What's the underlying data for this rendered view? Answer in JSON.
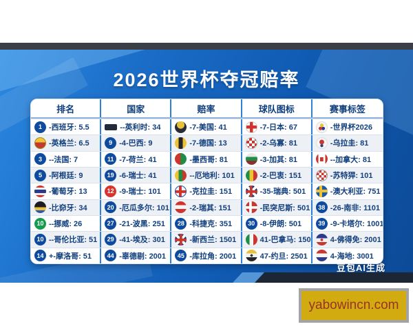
{
  "title": "2026世界杯夺冠赔率",
  "watermark": "豆包AI生成",
  "promo": {
    "text": "yabowincn.com"
  },
  "colors": {
    "background_blue": "#1a6cc6",
    "dark_bar": "#3a3e46",
    "table_text": "#123f7d",
    "column_divider_blue": "#2e7fd8",
    "badge_blue": "#0e4a9e",
    "badge_green": "#169a4f",
    "badge_red": "#d8332e",
    "promo_bg": "#d2ab10",
    "promo_text": "#993325"
  },
  "table": {
    "headers": [
      "排名",
      "国家",
      "赔率",
      "球队图标",
      "赛事标签"
    ],
    "rows": [
      [
        {
          "icon": "badge-blue",
          "num": "1",
          "text": "-西班牙: 5.5"
        },
        {
          "icon": "bar-dark",
          "text": "--英利时: 34"
        },
        {
          "icon": "crest-crown",
          "text": "-7-美国: 41"
        },
        {
          "icon": "flag-white-red-cross",
          "text": "-7-日本: 67"
        },
        {
          "icon": "logo-worldcup",
          "text": "-世界杯2026"
        }
      ],
      [
        {
          "icon": "crest-england",
          "text": "-英格兰: 6.5"
        },
        {
          "icon": "badge-blue",
          "num": "9",
          "text": "-4-巴西: 9"
        },
        {
          "icon": "flag-gold-black",
          "text": "-7-德国: 13"
        },
        {
          "icon": "flag-croatia-check",
          "text": "-2-乌寡: 81"
        },
        {
          "icon": "logo-worldcup-red",
          "text": "-乌拉圭: 81"
        }
      ],
      [
        {
          "icon": "badge-blue",
          "num": "3",
          "text": "--法国: 7"
        },
        {
          "icon": "badge-blue",
          "num": "11",
          "text": "-7-荷兰: 41"
        },
        {
          "icon": "flag-red-green",
          "text": "-墨西哥: 81"
        },
        {
          "icon": "flag-bulgaria",
          "text": "-3-加其: 81"
        },
        {
          "icon": "flag-canada",
          "text": "--加拿大: 81"
        }
      ],
      [
        {
          "icon": "badge-blue",
          "num": "5",
          "text": "-阿根廷: 9"
        },
        {
          "icon": "badge-blue",
          "num": "19",
          "text": "-6-瑞士: 41"
        },
        {
          "icon": "flag-yellow-green-red",
          "text": "--厄地利: 101"
        },
        {
          "icon": "flag-mali",
          "text": "-2-巴衷: 151"
        },
        {
          "icon": "crest-croatia",
          "text": "-苏特猂: 101"
        }
      ],
      [
        {
          "icon": "flag-thailand",
          "text": "-葡萄牙: 13"
        },
        {
          "icon": "badge-red",
          "num": "12",
          "text": "-9-瑞士: 101"
        },
        {
          "icon": "flag-cross-red",
          "text": "-克拉圭: 151"
        },
        {
          "icon": "flag-unionjack",
          "text": "-35-瑞典: 501"
        },
        {
          "icon": "flag-sweden",
          "text": "-澳大利亚: 751"
        }
      ],
      [
        {
          "icon": "flag-black-gold-blue",
          "text": "-比奅牙: 34"
        },
        {
          "icon": "badge-blue",
          "num": "20",
          "text": "-厄瓜多尔: 101"
        },
        {
          "icon": "flag-austria",
          "text": "-2-瑞其: 151"
        },
        {
          "icon": "flag-denmark",
          "text": "-民突尼斯: 501"
        },
        {
          "icon": "badge-blue",
          "num": "38",
          "text": "-26-南非: 1101"
        }
      ],
      [
        {
          "icon": "badge-green",
          "num": "10",
          "text": "--挪威: 26"
        },
        {
          "icon": "badge-blue",
          "num": "27",
          "text": "-21-波黑: 251"
        },
        {
          "icon": "badge-blue",
          "num": "28",
          "text": "-科捷克: 351"
        },
        {
          "icon": "badge-blue",
          "num": "30",
          "text": "-8-伊朗: 501"
        },
        {
          "icon": "badge-blue",
          "num": "39",
          "text": "-9-卡塔尔: 1001"
        }
      ],
      [
        {
          "icon": "badge-blue",
          "num": "10",
          "text": "--哥伦比亚: 51"
        },
        {
          "icon": "badge-blue",
          "num": "29",
          "text": "-41-埃及: 301"
        },
        {
          "icon": "flag-unionjack",
          "text": "-新西兰: 1501"
        },
        {
          "icon": "flag-italy",
          "text": "41-巴拿马: 1501"
        },
        {
          "icon": "flag-star",
          "text": "4-佛得免: 2001"
        }
      ],
      [
        {
          "icon": "badge-blue",
          "num": "14",
          "text": "+-摩洛哥: 51"
        },
        {
          "icon": "badge-blue",
          "num": "44",
          "text": "-辜德剔: 2001"
        },
        {
          "icon": "badge-blue",
          "num": "45",
          "text": "-库拉角: 2001"
        },
        {
          "icon": "flag-jordan",
          "text": "47-约旦: 2501"
        },
        {
          "icon": "flag-netherlands",
          "text": "4-海地: 3001"
        }
      ]
    ]
  },
  "chart_data": {
    "type": "table",
    "title": "2026世界杯夺冠赔率",
    "columns": [
      "排名",
      "国家",
      "赔率",
      "球队图标",
      "赛事标签"
    ],
    "rows": [
      [
        "-西班牙: 5.5",
        "--英利时: 34",
        "-7-美国: 41",
        "-7-日本: 67",
        "-世界杯2026"
      ],
      [
        "-英格兰: 6.5",
        "-4-巴西: 9",
        "-7-德国: 13",
        "-2-乌寡: 81",
        "-乌拉圭: 81"
      ],
      [
        "--法国: 7",
        "-7-荷兰: 41",
        "-墨西哥: 81",
        "-3-加其: 81",
        "--加拿大: 81"
      ],
      [
        "-阿根廷: 9",
        "-6-瑞士: 41",
        "--厄地利: 101",
        "-2-巴衷: 151",
        "-苏特猂: 101"
      ],
      [
        "-葡萄牙: 13",
        "-9-瑞士: 101",
        "-克拉圭: 151",
        "-35-瑞典: 501",
        "-澳大利亚: 751"
      ],
      [
        "-比奅牙: 34",
        "-厄瓜多尔: 101",
        "-2-瑞其: 151",
        "-民突尼斯: 501",
        "-26-南非: 1101"
      ],
      [
        "--挪威: 26",
        "-21-波黑: 251",
        "-科捷克: 351",
        "-8-伊朗: 501",
        "-9-卡塔尔: 1001"
      ],
      [
        "--哥伦比亚: 51",
        "-41-埃及: 301",
        "-新西兰: 1501",
        "41-巴拿马: 1501",
        "4-佛得免: 2001"
      ],
      [
        "+-摩洛哥: 51",
        "-辜德剔: 2001",
        "-库拉角: 2001",
        "47-约旦: 2501",
        "4-海地: 3001"
      ]
    ]
  }
}
